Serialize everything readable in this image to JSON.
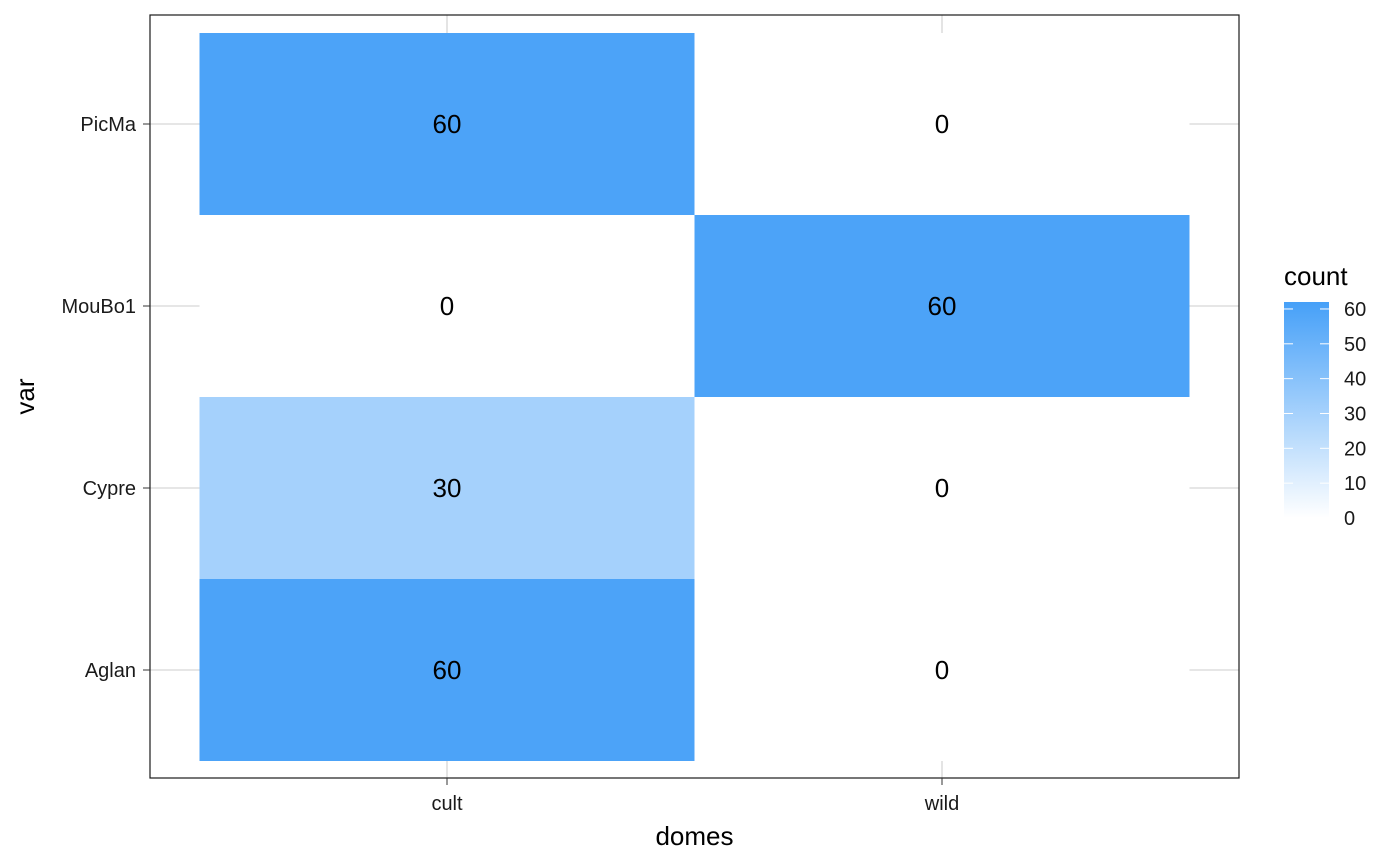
{
  "chart_data": {
    "type": "heatmap",
    "title": "",
    "xlabel": "domes",
    "ylabel": "var",
    "x_categories": [
      "cult",
      "wild"
    ],
    "y_categories": [
      "Aglan",
      "Cypre",
      "MouBo1",
      "PicMa"
    ],
    "cells": [
      {
        "x": "cult",
        "y": "PicMa",
        "value": 60
      },
      {
        "x": "wild",
        "y": "PicMa",
        "value": 0
      },
      {
        "x": "cult",
        "y": "MouBo1",
        "value": 0
      },
      {
        "x": "wild",
        "y": "MouBo1",
        "value": 60
      },
      {
        "x": "cult",
        "y": "Cypre",
        "value": 30
      },
      {
        "x": "wild",
        "y": "Cypre",
        "value": 0
      },
      {
        "x": "cult",
        "y": "Aglan",
        "value": 60
      },
      {
        "x": "wild",
        "y": "Aglan",
        "value": 0
      }
    ],
    "grid": true,
    "legend": {
      "title": "count",
      "position": "right",
      "ticks": [
        0,
        10,
        20,
        30,
        40,
        50,
        60
      ],
      "range": [
        0,
        62
      ],
      "color_low": "#ffffff",
      "color_high": "#46a0f8"
    }
  }
}
